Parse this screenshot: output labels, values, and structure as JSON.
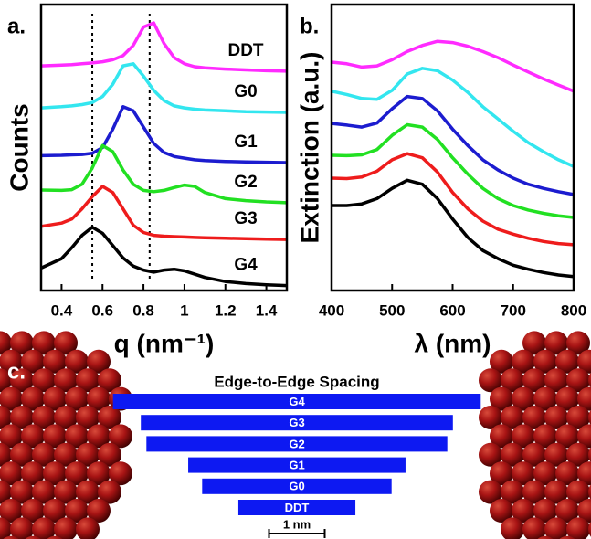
{
  "chart_data": [
    {
      "type": "line",
      "panel_label": "a.",
      "xlabel": "q (nm⁻¹)",
      "ylabel": "Counts",
      "xlim": [
        0.3,
        1.5
      ],
      "xticks": [
        0.4,
        0.6,
        0.8,
        1.0,
        1.2,
        1.4
      ],
      "ylim": [
        0,
        7
      ],
      "reference_lines": [
        0.55,
        0.83
      ],
      "x": [
        0.3,
        0.4,
        0.45,
        0.5,
        0.55,
        0.6,
        0.65,
        0.7,
        0.75,
        0.8,
        0.85,
        0.9,
        0.95,
        1.0,
        1.05,
        1.1,
        1.2,
        1.3,
        1.4,
        1.5
      ],
      "series": [
        {
          "name": "DDT",
          "color": "#ff2bff",
          "values": [
            5.5,
            5.52,
            5.53,
            5.55,
            5.57,
            5.6,
            5.65,
            5.75,
            6.0,
            6.45,
            6.55,
            6.05,
            5.7,
            5.55,
            5.48,
            5.45,
            5.42,
            5.4,
            5.38,
            5.37
          ]
        },
        {
          "name": "G0",
          "color": "#33e6ef",
          "values": [
            4.47,
            4.5,
            4.52,
            4.55,
            4.6,
            4.75,
            5.05,
            5.5,
            5.55,
            5.25,
            4.9,
            4.65,
            4.52,
            4.47,
            4.44,
            4.42,
            4.4,
            4.38,
            4.37,
            4.36
          ]
        },
        {
          "name": "G1",
          "color": "#1c1ccf",
          "values": [
            3.3,
            3.31,
            3.32,
            3.33,
            3.36,
            3.5,
            3.95,
            4.5,
            4.4,
            4.0,
            3.6,
            3.38,
            3.28,
            3.24,
            3.2,
            3.18,
            3.16,
            3.15,
            3.14,
            3.13
          ]
        },
        {
          "name": "G2",
          "color": "#22e022",
          "values": [
            2.46,
            2.45,
            2.47,
            2.6,
            3.0,
            3.55,
            3.4,
            2.95,
            2.6,
            2.45,
            2.42,
            2.45,
            2.52,
            2.58,
            2.55,
            2.4,
            2.25,
            2.2,
            2.17,
            2.15
          ]
        },
        {
          "name": "G3",
          "color": "#ee1c1c",
          "values": [
            1.57,
            1.65,
            1.75,
            2.0,
            2.3,
            2.55,
            2.4,
            2.0,
            1.6,
            1.42,
            1.35,
            1.33,
            1.32,
            1.31,
            1.3,
            1.29,
            1.28,
            1.27,
            1.26,
            1.25
          ]
        },
        {
          "name": "G4",
          "color": "#000000",
          "values": [
            0.55,
            0.78,
            1.05,
            1.35,
            1.55,
            1.4,
            1.1,
            0.8,
            0.6,
            0.5,
            0.45,
            0.5,
            0.52,
            0.48,
            0.4,
            0.32,
            0.22,
            0.17,
            0.14,
            0.12
          ]
        }
      ]
    },
    {
      "type": "line",
      "panel_label": "b.",
      "xlabel": "λ (nm)",
      "ylabel": "Extinction (a.u.)",
      "xlim": [
        400,
        800
      ],
      "xticks": [
        400,
        500,
        600,
        700,
        800
      ],
      "ylim": [
        0,
        7
      ],
      "x": [
        400,
        425,
        450,
        475,
        500,
        525,
        550,
        575,
        600,
        625,
        650,
        675,
        700,
        725,
        750,
        775,
        800
      ],
      "series": [
        {
          "color": "#ff2bff",
          "values": [
            5.59,
            5.55,
            5.47,
            5.5,
            5.65,
            5.85,
            6.0,
            6.1,
            6.07,
            5.98,
            5.85,
            5.7,
            5.52,
            5.35,
            5.18,
            5.03,
            4.88
          ]
        },
        {
          "color": "#33e6ef",
          "values": [
            4.88,
            4.8,
            4.7,
            4.68,
            4.9,
            5.3,
            5.44,
            5.38,
            5.15,
            4.85,
            4.5,
            4.2,
            3.9,
            3.62,
            3.4,
            3.2,
            3.04
          ]
        },
        {
          "color": "#1c1ccf",
          "values": [
            4.09,
            4.05,
            4.0,
            4.1,
            4.45,
            4.75,
            4.7,
            4.4,
            3.95,
            3.55,
            3.2,
            2.95,
            2.75,
            2.6,
            2.5,
            2.42,
            2.35
          ]
        },
        {
          "color": "#22e022",
          "values": [
            3.31,
            3.3,
            3.32,
            3.45,
            3.8,
            4.06,
            4.0,
            3.7,
            3.25,
            2.85,
            2.5,
            2.25,
            2.08,
            1.97,
            1.89,
            1.83,
            1.79
          ]
        },
        {
          "color": "#ee1c1c",
          "values": [
            2.75,
            2.74,
            2.78,
            2.92,
            3.2,
            3.35,
            3.25,
            2.9,
            2.4,
            2.0,
            1.7,
            1.5,
            1.38,
            1.28,
            1.2,
            1.15,
            1.12
          ]
        },
        {
          "color": "#000000",
          "values": [
            2.08,
            2.08,
            2.12,
            2.25,
            2.5,
            2.7,
            2.6,
            2.25,
            1.75,
            1.3,
            0.98,
            0.78,
            0.62,
            0.52,
            0.44,
            0.38,
            0.34
          ]
        }
      ]
    },
    {
      "type": "hbar",
      "panel_label": "c.",
      "title": "Edge-to-Edge Spacing",
      "color": "#0d19f2",
      "categories": [
        "G4",
        "G3",
        "G2",
        "G1",
        "G0",
        "DDT"
      ],
      "values": [
        6.6,
        5.6,
        5.4,
        3.9,
        3.4,
        2.1
      ],
      "scale_bar": {
        "value": 1,
        "label": "1 nm"
      }
    }
  ]
}
